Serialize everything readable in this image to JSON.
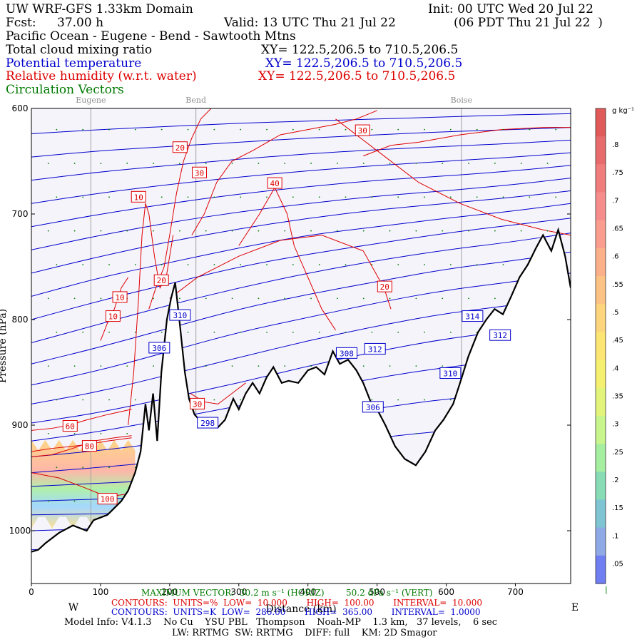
{
  "header": {
    "model": "UW WRF-GFS 1.33km Domain",
    "init": "Init: 00 UTC Wed 20 Jul 22",
    "fcst_label": "Fcst:",
    "fcst_value": "37.00 h",
    "valid": "Valid: 13 UTC Thu 21 Jul 22",
    "local_valid": "(06 PDT Thu 21 Jul 22  )",
    "region": "Pacific Ocean - Eugene - Bend - Sawtooth Mtns"
  },
  "fields": [
    {
      "name": "Total cloud mixing ratio",
      "xy": "XY= 122.5,206.5 to 710.5,206.5",
      "color": "#000000"
    },
    {
      "name": "Potential temperature",
      "xy": "XY= 122.5,206.5 to 710.5,206.5",
      "color": "#0000cc"
    },
    {
      "name": "Relative humidity (w.r.t. water)",
      "xy": "XY= 122.5,206.5 to 710.5,206.5",
      "color": "#dd0000"
    },
    {
      "name": "Circulation Vectors",
      "xy": "",
      "color": "#007a00"
    }
  ],
  "chart_data": {
    "type": "cross-section",
    "xlabel": "Distance (km)",
    "ylabel": "Pressure (hPa)",
    "xlim": [
      0,
      780
    ],
    "ylim": [
      1050,
      600
    ],
    "x_ticks": [
      0,
      100,
      200,
      300,
      400,
      500,
      600,
      700
    ],
    "y_ticks": [
      600,
      700,
      800,
      900,
      1000
    ],
    "y_tick_labels": [
      "600",
      "700",
      "800",
      "900",
      "1000"
    ],
    "left_label": "W",
    "right_label": "E",
    "locations": [
      {
        "name": "Eugene",
        "km": 86
      },
      {
        "name": "Bend",
        "km": 238
      },
      {
        "name": "Boise",
        "km": 622
      }
    ],
    "terrain_hpa": [
      [
        0,
        1020
      ],
      [
        10,
        1018
      ],
      [
        20,
        1012
      ],
      [
        40,
        1002
      ],
      [
        60,
        995
      ],
      [
        80,
        1000
      ],
      [
        90,
        990
      ],
      [
        110,
        985
      ],
      [
        130,
        972
      ],
      [
        140,
        962
      ],
      [
        150,
        945
      ],
      [
        158,
        925
      ],
      [
        165,
        880
      ],
      [
        170,
        905
      ],
      [
        176,
        870
      ],
      [
        182,
        915
      ],
      [
        188,
        850
      ],
      [
        196,
        800
      ],
      [
        202,
        780
      ],
      [
        208,
        765
      ],
      [
        214,
        800
      ],
      [
        222,
        850
      ],
      [
        228,
        875
      ],
      [
        236,
        890
      ],
      [
        250,
        900
      ],
      [
        270,
        902
      ],
      [
        280,
        895
      ],
      [
        292,
        875
      ],
      [
        300,
        885
      ],
      [
        310,
        870
      ],
      [
        320,
        860
      ],
      [
        330,
        870
      ],
      [
        340,
        855
      ],
      [
        350,
        845
      ],
      [
        362,
        860
      ],
      [
        372,
        858
      ],
      [
        386,
        860
      ],
      [
        400,
        848
      ],
      [
        412,
        845
      ],
      [
        424,
        852
      ],
      [
        436,
        830
      ],
      [
        446,
        842
      ],
      [
        458,
        838
      ],
      [
        470,
        848
      ],
      [
        480,
        860
      ],
      [
        492,
        880
      ],
      [
        500,
        885
      ],
      [
        512,
        900
      ],
      [
        526,
        920
      ],
      [
        540,
        932
      ],
      [
        556,
        938
      ],
      [
        570,
        925
      ],
      [
        584,
        905
      ],
      [
        596,
        895
      ],
      [
        610,
        880
      ],
      [
        620,
        860
      ],
      [
        632,
        835
      ],
      [
        646,
        812
      ],
      [
        658,
        800
      ],
      [
        670,
        790
      ],
      [
        682,
        795
      ],
      [
        694,
        778
      ],
      [
        706,
        760
      ],
      [
        718,
        748
      ],
      [
        730,
        732
      ],
      [
        740,
        720
      ],
      [
        752,
        735
      ],
      [
        762,
        715
      ],
      [
        772,
        740
      ],
      [
        780,
        770
      ]
    ],
    "rh_labels": [
      {
        "label": "30",
        "km": 479,
        "hpa": 621
      },
      {
        "label": "20",
        "km": 215,
        "hpa": 637
      },
      {
        "label": "30",
        "km": 243,
        "hpa": 661
      },
      {
        "label": "40",
        "km": 352,
        "hpa": 671
      },
      {
        "label": "10",
        "km": 155,
        "hpa": 684
      },
      {
        "label": "20",
        "km": 188,
        "hpa": 763
      },
      {
        "label": "10",
        "km": 128,
        "hpa": 779
      },
      {
        "label": "20",
        "km": 511,
        "hpa": 769
      },
      {
        "label": "10",
        "km": 118,
        "hpa": 797
      },
      {
        "label": "30",
        "km": 240,
        "hpa": 880
      },
      {
        "label": "60",
        "km": 56,
        "hpa": 901
      },
      {
        "label": "80",
        "km": 84,
        "hpa": 920
      },
      {
        "label": "100",
        "km": 110,
        "hpa": 970
      }
    ],
    "theta_labels": [
      {
        "label": "310",
        "km": 215,
        "hpa": 796
      },
      {
        "label": "306",
        "km": 185,
        "hpa": 827
      },
      {
        "label": "308",
        "km": 456,
        "hpa": 832
      },
      {
        "label": "312",
        "km": 497,
        "hpa": 828
      },
      {
        "label": "314",
        "km": 638,
        "hpa": 797
      },
      {
        "label": "312",
        "km": 678,
        "hpa": 815
      },
      {
        "label": "310",
        "km": 606,
        "hpa": 851
      },
      {
        "label": "306",
        "km": 494,
        "hpa": 883
      },
      {
        "label": "298",
        "km": 255,
        "hpa": 898
      }
    ],
    "theta_levels": [
      {
        "k": 286,
        "hpa": [
          1040,
          1038,
          1036,
          1035,
          1034,
          1033,
          1032,
          1031,
          1030
        ]
      },
      {
        "k": 288,
        "hpa": [
          1018,
          1016,
          1014,
          1012,
          1010,
          1009,
          1008,
          1007,
          1006
        ]
      },
      {
        "k": 290,
        "hpa": [
          1000,
          998,
          996,
          994,
          992,
          990,
          989,
          988,
          987
        ]
      },
      {
        "k": 292,
        "hpa": [
          985,
          984,
          982,
          980,
          978,
          976,
          975,
          974,
          973
        ]
      },
      {
        "k": 294,
        "hpa": [
          972,
          970,
          968,
          966,
          964,
          962,
          960,
          959,
          958
        ]
      },
      {
        "k": 296,
        "hpa": [
          958,
          955,
          952,
          948,
          944,
          940,
          938,
          936,
          935
        ]
      },
      {
        "k": 298,
        "hpa": [
          945,
          940,
          934,
          928,
          920,
          912,
          905,
          902,
          900
        ]
      },
      {
        "k": 300,
        "hpa": [
          930,
          924,
          916,
          906,
          895,
          884,
          875,
          870,
          866
        ]
      },
      {
        "k": 302,
        "hpa": [
          915,
          906,
          894,
          882,
          868,
          855,
          845,
          838,
          832
        ]
      },
      {
        "k": 304,
        "hpa": [
          898,
          888,
          874,
          860,
          844,
          830,
          818,
          810,
          802
        ]
      },
      {
        "k": 306,
        "hpa": [
          880,
          868,
          852,
          836,
          820,
          806,
          794,
          786,
          778
        ]
      },
      {
        "k": 308,
        "hpa": [
          862,
          848,
          830,
          812,
          798,
          784,
          772,
          764,
          756
        ]
      },
      {
        "k": 310,
        "hpa": [
          842,
          826,
          808,
          790,
          776,
          764,
          752,
          744,
          736
        ]
      },
      {
        "k": 312,
        "hpa": [
          822,
          804,
          786,
          770,
          756,
          744,
          734,
          726,
          718
        ]
      },
      {
        "k": 314,
        "hpa": [
          800,
          782,
          766,
          750,
          738,
          728,
          718,
          710,
          704
        ]
      },
      {
        "k": 316,
        "hpa": [
          778,
          760,
          746,
          732,
          720,
          712,
          704,
          697,
          690
        ]
      },
      {
        "k": 318,
        "hpa": [
          756,
          740,
          726,
          714,
          704,
          696,
          690,
          684,
          678
        ]
      },
      {
        "k": 320,
        "hpa": [
          734,
          720,
          708,
          698,
          690,
          683,
          678,
          672,
          666
        ]
      },
      {
        "k": 322,
        "hpa": [
          712,
          700,
          690,
          681,
          674,
          668,
          664,
          659,
          654
        ]
      },
      {
        "k": 324,
        "hpa": [
          690,
          680,
          672,
          665,
          659,
          654,
          650,
          646,
          642
        ]
      },
      {
        "k": 326,
        "hpa": [
          668,
          660,
          654,
          648,
          643,
          639,
          636,
          633,
          630
        ]
      },
      {
        "k": 328,
        "hpa": [
          646,
          640,
          636,
          632,
          628,
          625,
          622,
          620,
          618
        ]
      },
      {
        "k": 330,
        "hpa": [
          624,
          620,
          617,
          614,
          612,
          610,
          608,
          606,
          605
        ]
      }
    ],
    "theta_x_km": [
      0,
      100,
      200,
      300,
      400,
      500,
      600,
      700,
      780
    ],
    "rh_lines": [
      {
        "value": 10,
        "points": [
          [
            140,
            900
          ],
          [
            148,
            850
          ],
          [
            155,
            780
          ],
          [
            160,
            720
          ],
          [
            165,
            690
          ],
          [
            170,
            700
          ],
          [
            178,
            740
          ],
          [
            186,
            770
          ],
          [
            195,
            760
          ],
          [
            205,
            720
          ]
        ]
      },
      {
        "value": 10,
        "points": [
          [
            100,
            820
          ],
          [
            112,
            800
          ],
          [
            120,
            790
          ],
          [
            130,
            770
          ],
          [
            140,
            760
          ]
        ]
      },
      {
        "value": 20,
        "points": [
          [
            170,
            790
          ],
          [
            180,
            770
          ],
          [
            192,
            750
          ],
          [
            200,
            720
          ],
          [
            210,
            680
          ],
          [
            220,
            650
          ],
          [
            232,
            628
          ],
          [
            245,
            610
          ],
          [
            260,
            600
          ]
        ]
      },
      {
        "value": 20,
        "points": [
          [
            200,
            780
          ],
          [
            240,
            760
          ],
          [
            300,
            740
          ],
          [
            360,
            725
          ],
          [
            420,
            720
          ],
          [
            480,
            735
          ],
          [
            510,
            770
          ],
          [
            520,
            790
          ]
        ]
      },
      {
        "value": 30,
        "points": [
          [
            232,
            720
          ],
          [
            250,
            700
          ],
          [
            268,
            670
          ],
          [
            290,
            650
          ],
          [
            320,
            640
          ],
          [
            360,
            625
          ],
          [
            400,
            620
          ],
          [
            440,
            615
          ],
          [
            470,
            610
          ],
          [
            500,
            602
          ]
        ]
      },
      {
        "value": 30,
        "points": [
          [
            480,
            645
          ],
          [
            520,
            635
          ],
          [
            560,
            632
          ],
          [
            620,
            625
          ],
          [
            680,
            620
          ],
          [
            740,
            618
          ],
          [
            780,
            618
          ]
        ]
      },
      {
        "value": 40,
        "points": [
          [
            300,
            730
          ],
          [
            330,
            700
          ],
          [
            352,
            675
          ],
          [
            370,
            700
          ],
          [
            380,
            730
          ],
          [
            400,
            760
          ],
          [
            420,
            790
          ],
          [
            440,
            810
          ]
        ]
      },
      {
        "value": 30,
        "points": [
          [
            440,
            610
          ],
          [
            500,
            640
          ],
          [
            560,
            670
          ],
          [
            620,
            690
          ],
          [
            680,
            705
          ],
          [
            740,
            715
          ],
          [
            780,
            720
          ]
        ]
      },
      {
        "value": 30,
        "points": [
          [
            230,
            870
          ],
          [
            250,
            878
          ],
          [
            270,
            880
          ],
          [
            290,
            870
          ],
          [
            310,
            860
          ]
        ]
      },
      {
        "value": 40,
        "points": [
          [
            0,
            930
          ],
          [
            30,
            928
          ],
          [
            60,
            922
          ],
          [
            90,
            915
          ],
          [
            120,
            912
          ],
          [
            145,
            910
          ]
        ]
      },
      {
        "value": 60,
        "points": [
          [
            0,
            905
          ],
          [
            30,
            903
          ],
          [
            55,
            900
          ],
          [
            80,
            895
          ],
          [
            110,
            890
          ],
          [
            145,
            885
          ]
        ]
      },
      {
        "value": 80,
        "points": [
          [
            0,
            925
          ],
          [
            30,
            922
          ],
          [
            60,
            920
          ],
          [
            84,
            918
          ],
          [
            110,
            915
          ],
          [
            145,
            912
          ]
        ]
      },
      {
        "value": 100,
        "points": [
          [
            0,
            945
          ],
          [
            40,
            950
          ],
          [
            80,
            960
          ],
          [
            110,
            968
          ],
          [
            140,
            965
          ]
        ]
      }
    ],
    "cloud_region": {
      "x_km": [
        0,
        150
      ],
      "hpa": [
        990,
        920
      ],
      "max_g_per_kg": 0.85
    },
    "colorbar": {
      "unit": "g kg⁻¹",
      "tick_labels": [
        ".8",
        ".75",
        ".7",
        ".65",
        ".6",
        ".55",
        ".5",
        ".45",
        ".4",
        ".35",
        ".3",
        ".25",
        ".2",
        ".15",
        ".1",
        ".05"
      ],
      "min": 0.01,
      "min_label": "|"
    }
  },
  "footer": {
    "max_vector": "MAXIMUM VECTOR:  30.2 m s⁻¹ (HORIZ)        50.2 dPa s⁻¹ (VERT)",
    "rh_contours": "CONTOURS:  UNITS=%  LOW=  10.000       HIGH=  100.00       INTERVAL=  10.000",
    "theta_contours": "CONTOURS:  UNITS=K  LOW=  286.00       HIGH=  365.00       INTERVAL=  1.0000",
    "model_info": "Model Info: V4.1.3    No Cu    YSU PBL   Thompson    Noah-MP    1.3 km,   37 levels,    6 sec",
    "physics": "LW: RRTMG  SW: RRTMG    DIFF: full    KM: 2D Smagor"
  }
}
